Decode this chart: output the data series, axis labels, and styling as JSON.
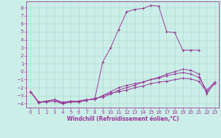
{
  "xlabel": "Windchill (Refroidissement éolien,°C)",
  "bg_color": "#cceee8",
  "grid_color": "#aaddcc",
  "line_color": "#993399",
  "spine_color": "#993399",
  "xlim": [
    -0.5,
    23.5
  ],
  "ylim": [
    -4.5,
    8.8
  ],
  "xticks": [
    0,
    1,
    2,
    3,
    4,
    5,
    6,
    7,
    8,
    9,
    10,
    11,
    12,
    13,
    14,
    15,
    16,
    17,
    18,
    19,
    20,
    21,
    22,
    23
  ],
  "yticks": [
    -4,
    -3,
    -2,
    -1,
    0,
    1,
    2,
    3,
    4,
    5,
    6,
    7,
    8
  ],
  "xs_main": [
    0,
    1,
    2,
    3,
    4,
    5,
    6,
    7,
    8,
    9,
    10,
    11,
    12,
    13,
    14,
    15,
    16,
    17,
    18,
    19,
    20,
    21
  ],
  "ys_main": [
    -2.5,
    -3.8,
    -3.7,
    -3.5,
    -4.0,
    -3.7,
    -3.7,
    -3.5,
    -3.5,
    1.2,
    3.0,
    5.3,
    7.5,
    7.8,
    7.9,
    8.3,
    8.2,
    5.0,
    4.9,
    2.7,
    2.7,
    2.7
  ],
  "xs2": [
    0,
    1,
    2,
    3,
    4,
    5,
    6,
    7,
    8,
    9,
    10,
    11,
    12,
    13,
    14,
    15,
    16,
    17,
    18,
    19,
    20,
    21,
    22,
    23
  ],
  "ys2": [
    -2.5,
    -3.8,
    -3.7,
    -3.5,
    -4.0,
    -3.7,
    -3.7,
    -3.5,
    -3.5,
    -3.0,
    -2.7,
    -2.5,
    -2.3,
    -2.0,
    -1.8,
    -1.5,
    -1.3,
    -1.2,
    -1.0,
    -0.8,
    -0.9,
    -1.2,
    -2.5,
    -1.5
  ],
  "xs3": [
    0,
    1,
    2,
    3,
    4,
    5,
    6,
    7,
    8,
    9,
    10,
    11,
    12,
    13,
    14,
    15,
    16,
    17,
    18,
    19,
    20,
    21,
    22,
    23
  ],
  "ys3": [
    -2.5,
    -3.9,
    -3.7,
    -3.5,
    -3.8,
    -3.7,
    -3.7,
    -3.5,
    -3.5,
    -3.0,
    -2.5,
    -2.0,
    -1.7,
    -1.5,
    -1.3,
    -1.0,
    -0.8,
    -0.5,
    -0.3,
    -0.1,
    -0.3,
    -0.7,
    -2.3,
    -1.3
  ],
  "xs4": [
    0,
    1,
    2,
    3,
    4,
    5,
    6,
    7,
    8,
    9,
    10,
    11,
    12,
    13,
    14,
    15,
    16,
    17,
    18,
    19,
    20,
    21,
    22,
    23
  ],
  "ys4": [
    -2.5,
    -3.8,
    -3.8,
    -3.7,
    -4.0,
    -3.8,
    -3.8,
    -3.6,
    -3.3,
    -3.2,
    -2.8,
    -2.3,
    -2.0,
    -1.7,
    -1.3,
    -1.0,
    -0.7,
    -0.3,
    0.0,
    0.3,
    0.2,
    -0.3,
    -2.8,
    -1.3
  ],
  "tick_fontsize": 5,
  "xlabel_fontsize": 5.5,
  "marker": "+",
  "markersize": 3,
  "linewidth": 0.7,
  "markeredgewidth": 0.7
}
